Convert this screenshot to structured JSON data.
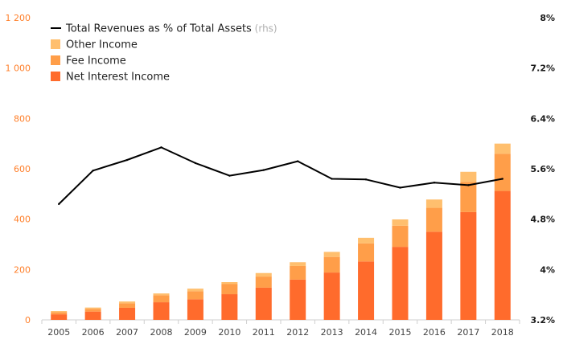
{
  "chart_data": {
    "type": "bar",
    "stacked": true,
    "categories": [
      "2005",
      "2006",
      "2007",
      "2008",
      "2009",
      "2010",
      "2011",
      "2012",
      "2013",
      "2014",
      "2015",
      "2016",
      "2017",
      "2018"
    ],
    "series": [
      {
        "name": "Net Interest Income",
        "color": "#ff6b2c",
        "values": [
          22,
          33,
          48,
          70,
          82,
          102,
          128,
          160,
          188,
          232,
          290,
          350,
          428,
          512
        ]
      },
      {
        "name": "Fee Income",
        "color": "#ff9e49",
        "values": [
          9,
          11,
          18,
          28,
          32,
          40,
          44,
          54,
          62,
          72,
          84,
          95,
          120,
          148
        ]
      },
      {
        "name": "Other Income",
        "color": "#ffbf6e",
        "values": [
          4,
          5,
          7,
          7,
          10,
          8,
          14,
          15,
          20,
          22,
          25,
          33,
          40,
          40
        ]
      }
    ],
    "line": {
      "name": "Total Revenues as % of Total Assets",
      "name_suffix": "(rhs)",
      "color": "#000000",
      "axis": "right",
      "values": [
        5.04,
        5.57,
        5.74,
        5.94,
        5.69,
        5.49,
        5.58,
        5.72,
        5.44,
        5.43,
        5.3,
        5.38,
        5.34,
        5.44
      ]
    },
    "ylim_left": [
      0,
      1200
    ],
    "yticks_left": [
      0,
      200,
      400,
      600,
      800,
      1000,
      1200
    ],
    "yticklabels_left": [
      "0",
      "200",
      "400",
      "600",
      "800",
      "1 000",
      "1 200"
    ],
    "ylim_right": [
      3.2,
      8
    ],
    "yticks_right": [
      3.2,
      4,
      4.8,
      5.6,
      6.4,
      7.2,
      8
    ],
    "yticklabels_right": [
      "3.2%",
      "4%",
      "4.8%",
      "5.6%",
      "6.4%",
      "7.2%",
      "8%"
    ],
    "legend": {
      "position": "top-left",
      "entries": [
        {
          "label": "Total Revenues as % of Total Assets",
          "suffix": "(rhs)",
          "kind": "line",
          "color": "#000000"
        },
        {
          "label": "Other Income",
          "kind": "box",
          "color": "#ffbf6e"
        },
        {
          "label": "Fee Income",
          "kind": "box",
          "color": "#ff9e49"
        },
        {
          "label": "Net Interest Income",
          "kind": "box",
          "color": "#ff6b2c"
        }
      ]
    },
    "colors": {
      "left_axis": "#ff7f2a",
      "right_axis": "#1a1a1a",
      "axis_line": "#cfcfcf"
    }
  }
}
